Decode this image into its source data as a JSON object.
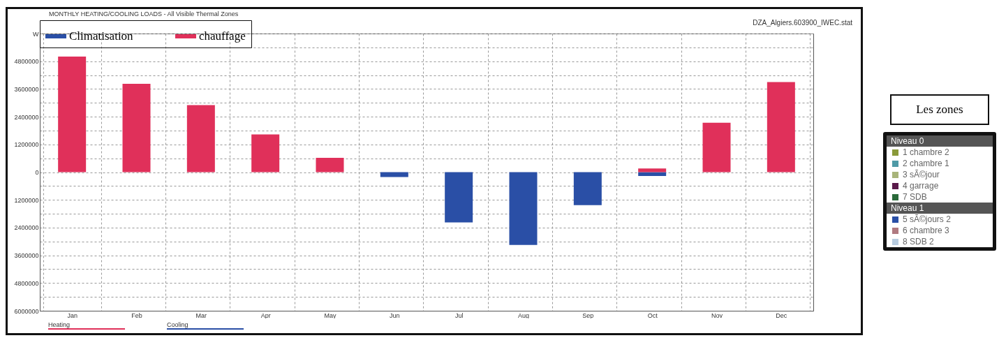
{
  "chart_data": [
    {
      "type": "bar",
      "title": "MONTHLY HEATING/COOLING LOADS - All Visible Thermal Zones",
      "categories": [
        "Jan",
        "Feb",
        "Mar",
        "Apr",
        "May",
        "Jun",
        "Jul",
        "Aug",
        "Sep",
        "Oct",
        "Nov",
        "Dec"
      ],
      "series": [
        {
          "name": "Climatisation",
          "color": "#2a4fa6",
          "values": [
            null,
            null,
            null,
            null,
            null,
            -210000,
            -2180000,
            -3150000,
            -1430000,
            -170000,
            null,
            null
          ]
        },
        {
          "name": "chauffage",
          "color": "#e0305a",
          "values": [
            5000000,
            3820000,
            2900000,
            1630000,
            620000,
            null,
            null,
            null,
            null,
            160000,
            2140000,
            3900000
          ]
        }
      ],
      "stacked": true,
      "ylim": [
        -6000000,
        6000000
      ],
      "yticks": [
        {
          "value": 6000000,
          "label": "W"
        },
        {
          "value": 5400000,
          "label": null
        },
        4800000,
        {
          "value": 4200000,
          "label": null
        },
        3600000,
        {
          "value": 3000000,
          "label": null
        },
        2400000,
        {
          "value": 1800000,
          "label": null
        },
        1200000,
        {
          "value": 600000,
          "label": null
        },
        0,
        {
          "value": -600000,
          "label": null
        },
        {
          "value": -1200000,
          "label": "1200000"
        },
        {
          "value": -1800000,
          "label": null
        },
        {
          "value": -2400000,
          "label": "2400000"
        },
        {
          "value": -3000000,
          "label": null
        },
        {
          "value": -3600000,
          "label": "3600000"
        },
        {
          "value": -4200000,
          "label": null
        },
        {
          "value": -4800000,
          "label": "4800000"
        },
        {
          "value": -5400000,
          "label": null
        },
        {
          "value": -6000000,
          "label": "6000000"
        }
      ],
      "grid": true,
      "legend": "top",
      "annotations": [
        "DZA_Algiers.603900_IWEC.stat",
        "Heating",
        "Cooling"
      ]
    },
    {
      "type": "other",
      "title": "Les zones",
      "annotations": [
        "Niveau 0",
        "1 chambre 2",
        "2 chambre 1",
        "3 sÃ©jour",
        "4 garrage",
        "7 SDB",
        "Niveau 1",
        "5 sÃ©jours 2",
        "6 chambre 3",
        "8 SDB 2"
      ]
    }
  ]
}
